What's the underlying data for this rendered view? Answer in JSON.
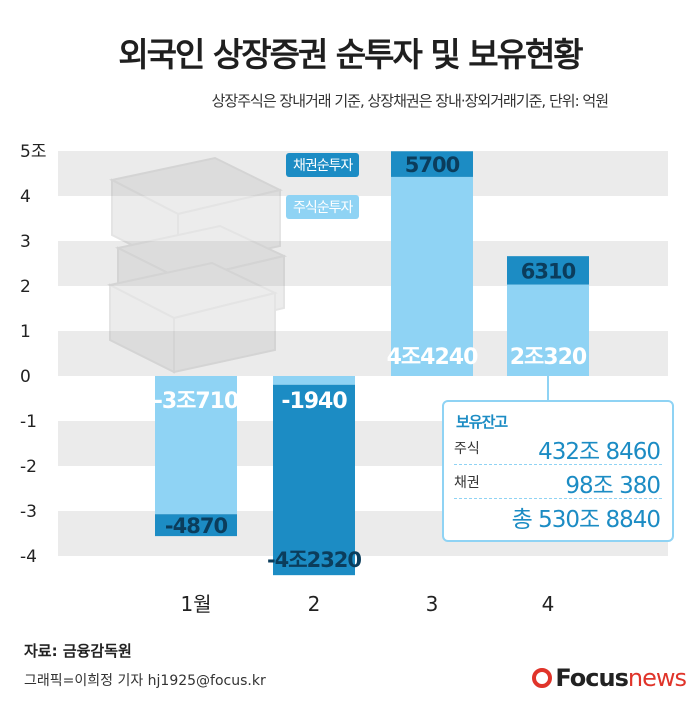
{
  "header": {
    "title": "외국인 상장증권 순투자 및 보유현황",
    "subtitle": "상장주식은 장내거래 기준, 상장채권은 장내·장외거래기준, 단위: 억원"
  },
  "legend": {
    "bond": "채권순투자",
    "stock": "주식순투자"
  },
  "colors": {
    "stock": "#8fd3f4",
    "bond": "#1c8cc4",
    "dark_label": "#0b3d5c",
    "grid": "#ebebeb"
  },
  "chart_data": {
    "type": "bar",
    "stacked": true,
    "unit": "억원",
    "categories": [
      "1월",
      "2",
      "3",
      "4"
    ],
    "series": [
      {
        "name": "주식순투자",
        "values": [
          -30710,
          -1940,
          44240,
          20320
        ],
        "labels": [
          "-3조710",
          "-1940",
          "4조4240",
          "2조320"
        ]
      },
      {
        "name": "채권순투자",
        "values": [
          -4870,
          -42320,
          5700,
          6310
        ],
        "labels": [
          "-4870",
          "-4조2320",
          "5700",
          "6310"
        ]
      }
    ],
    "ylim": [
      -45000,
      50000
    ],
    "yticks": [
      {
        "v": 50000,
        "t": "5조"
      },
      {
        "v": 40000,
        "t": "4"
      },
      {
        "v": 30000,
        "t": "3"
      },
      {
        "v": 20000,
        "t": "2"
      },
      {
        "v": 10000,
        "t": "1"
      },
      {
        "v": 0,
        "t": "0"
      },
      {
        "v": -10000,
        "t": "-1"
      },
      {
        "v": -20000,
        "t": "-2"
      },
      {
        "v": -30000,
        "t": "-3"
      },
      {
        "v": -40000,
        "t": "-4"
      }
    ],
    "grid": true
  },
  "holdings": {
    "title": "보유잔고",
    "stock_label": "주식",
    "stock_value": "432조 8460",
    "bond_label": "채권",
    "bond_value": "98조 380",
    "total": "총 530조 8840"
  },
  "footer": {
    "source": "자료: 금융감독원",
    "credit": "그래픽=이희정 기자 hj1925@focus.kr",
    "logo_focus": "Focus",
    "logo_news": "news"
  }
}
